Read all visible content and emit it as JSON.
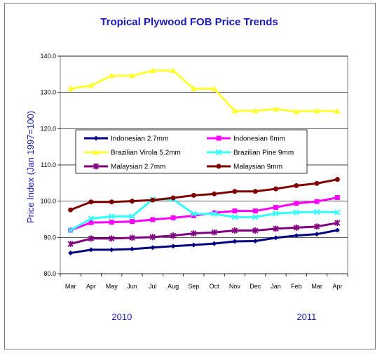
{
  "chart_data": {
    "type": "line",
    "title": "Tropical Plywood FOB Price Trends",
    "ylabel": "Price Index (Jan 1997=100)",
    "xlabel": "",
    "categories": [
      "Mar",
      "Apr",
      "May",
      "Jun",
      "Jul",
      "Aug",
      "Sep",
      "Oct",
      "Nov",
      "Dec",
      "Jan",
      "Feb",
      "Mar",
      "Apr"
    ],
    "year_labels": [
      {
        "label": "2010",
        "category_index": 2.5
      },
      {
        "label": "2011",
        "category_index": 11.5
      }
    ],
    "ylim": [
      80,
      140
    ],
    "yticks": [
      "80.0",
      "90.0",
      "100.0",
      "110.0",
      "120.0",
      "130.0",
      "140.0"
    ],
    "grid": "horizontal",
    "legend": "inside-upper-middle",
    "series": [
      {
        "name": "Indonesian 2.7mm",
        "color": "#000080",
        "marker": "diamond",
        "values": [
          85.7,
          86.6,
          86.6,
          86.8,
          87.2,
          87.6,
          87.9,
          88.3,
          88.9,
          89.0,
          89.9,
          90.5,
          90.9,
          92.0
        ]
      },
      {
        "name": "Indonesian 6mm",
        "color": "#ff00ff",
        "marker": "square",
        "values": [
          92.0,
          94.1,
          94.2,
          94.4,
          94.9,
          95.4,
          96.0,
          96.8,
          97.3,
          97.3,
          98.3,
          99.4,
          99.9,
          101.0
        ]
      },
      {
        "name": "Brazilian Virola 5.2mm",
        "color": "#ffff33",
        "marker": "triangle",
        "values": [
          131.0,
          131.9,
          134.6,
          134.6,
          136.0,
          136.0,
          131.0,
          131.0,
          124.9,
          124.9,
          125.4,
          124.7,
          124.9,
          124.8
        ]
      },
      {
        "name": "Brazilian Pine 9mm",
        "color": "#33ffff",
        "marker": "x",
        "values": [
          92.0,
          95.2,
          95.8,
          95.8,
          100.5,
          100.5,
          96.5,
          96.5,
          95.6,
          95.6,
          96.6,
          96.9,
          97.0,
          96.9
        ]
      },
      {
        "name": "Malaysian 2.7mm",
        "color": "#800080",
        "marker": "star",
        "values": [
          88.2,
          89.7,
          89.7,
          89.9,
          90.1,
          90.5,
          91.1,
          91.4,
          91.9,
          91.9,
          92.4,
          92.7,
          93.0,
          94.0
        ]
      },
      {
        "name": "Malaysian 9mm",
        "color": "#800000",
        "marker": "circle",
        "values": [
          97.6,
          99.8,
          99.8,
          100.0,
          100.3,
          100.9,
          101.6,
          102.0,
          102.7,
          102.7,
          103.4,
          104.3,
          104.9,
          106.0
        ]
      }
    ]
  }
}
